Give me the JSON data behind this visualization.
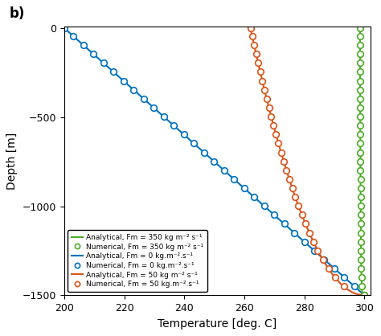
{
  "title": "b)",
  "xlabel": "Temperature [deg. C]",
  "ylabel": "Depth [m]",
  "xlim": [
    200,
    302
  ],
  "ylim": [
    -1500,
    10
  ],
  "xticks": [
    200,
    220,
    240,
    260,
    280,
    300
  ],
  "yticks": [
    0,
    -500,
    -1000,
    -1500
  ],
  "depth_min": -1500,
  "depth_max": 0,
  "colors": {
    "green": "#4dac26",
    "blue": "#0072bd",
    "orange": "#d95319"
  },
  "legend_labels": [
    "Analytical, Fm = 350 kg m⁻² s⁻¹",
    "Numerical, Fm = 350 kg m⁻² s⁻¹",
    "Analytical, Fm = 0 kg.m⁻².s⁻¹",
    "Numerical, Fm = 0 kg.m⁻².s⁻¹",
    "Analytical, Fm = 50 kg m⁻² s⁻¹",
    "Numerical, Fm = 50 kg.m⁻².s⁻¹"
  ],
  "n_analytical": 300,
  "n_markers": 31,
  "marker_size": 5.5,
  "line_width": 1.5
}
